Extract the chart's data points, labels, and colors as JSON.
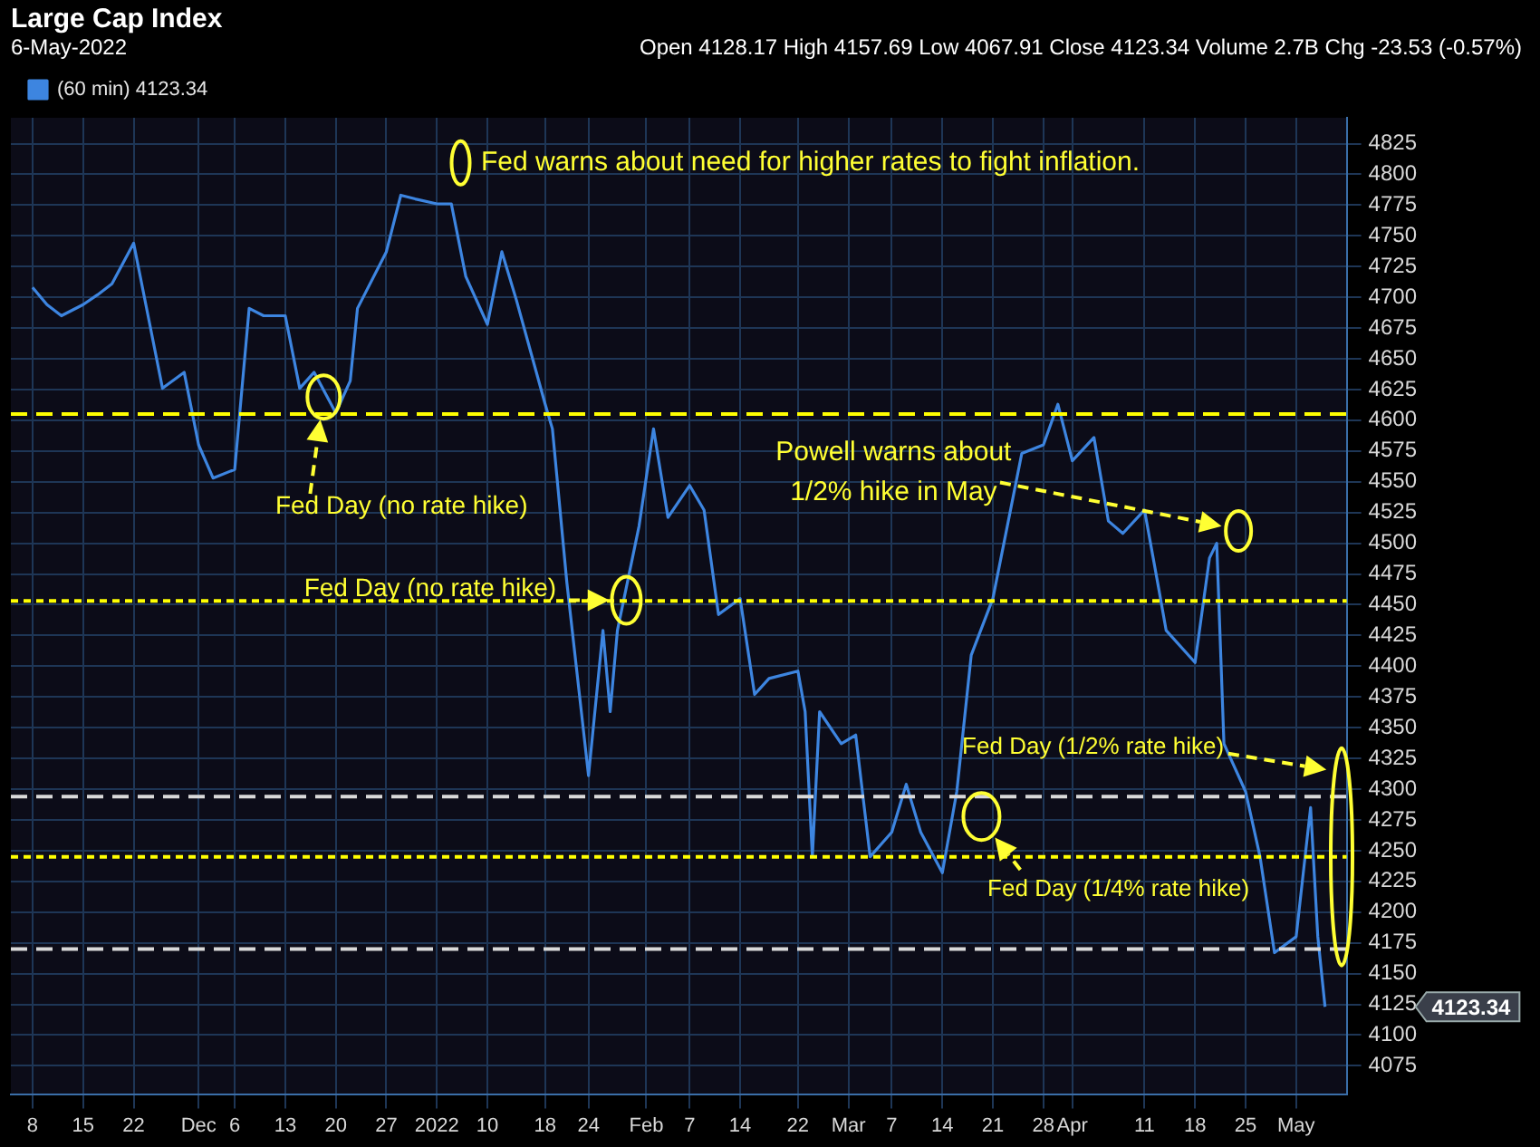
{
  "chart_data": {
    "type": "line",
    "title": "Large Cap Index",
    "subtitle": "6-May-2022",
    "x": [
      "2021-11-08",
      "2021-11-10",
      "2021-11-12",
      "2021-11-15",
      "2021-11-17",
      "2021-11-19",
      "2021-11-22",
      "2021-11-24",
      "2021-11-26",
      "2021-11-29",
      "2021-12-01",
      "2021-12-03",
      "2021-12-06",
      "2021-12-08",
      "2021-12-10",
      "2021-12-13",
      "2021-12-15",
      "2021-12-17",
      "2021-12-20",
      "2021-12-22",
      "2021-12-23",
      "2021-12-27",
      "2021-12-29",
      "2021-12-31",
      "2022-01-03",
      "2022-01-05",
      "2022-01-07",
      "2022-01-10",
      "2022-01-12",
      "2022-01-14",
      "2022-01-18",
      "2022-01-19",
      "2022-01-21",
      "2022-01-24",
      "2022-01-26",
      "2022-01-27",
      "2022-01-28",
      "2022-01-31",
      "2022-02-02",
      "2022-02-04",
      "2022-02-07",
      "2022-02-09",
      "2022-02-11",
      "2022-02-14",
      "2022-02-16",
      "2022-02-18",
      "2022-02-22",
      "2022-02-23",
      "2022-02-24",
      "2022-02-25",
      "2022-02-28",
      "2022-03-02",
      "2022-03-04",
      "2022-03-07",
      "2022-03-09",
      "2022-03-11",
      "2022-03-14",
      "2022-03-16",
      "2022-03-18",
      "2022-03-21",
      "2022-03-23",
      "2022-03-25",
      "2022-03-28",
      "2022-03-30",
      "2022-04-01",
      "2022-04-04",
      "2022-04-06",
      "2022-04-08",
      "2022-04-11",
      "2022-04-13",
      "2022-04-14",
      "2022-04-18",
      "2022-04-20",
      "2022-04-21",
      "2022-04-22",
      "2022-04-25",
      "2022-04-27",
      "2022-04-29",
      "2022-05-02",
      "2022-05-04",
      "2022-05-05",
      "2022-05-06"
    ],
    "series": [
      {
        "name": "(60 min) 4123.34",
        "color": "#3d85e0",
        "values": [
          4708,
          4694,
          4685,
          4694,
          4702,
          4711,
          4744,
          4685,
          4626,
          4639,
          4580,
          4553,
          4560,
          4691,
          4685,
          4685,
          4626,
          4639,
          4606,
          4632,
          4691,
          4737,
          4783,
          4780,
          4776,
          4776,
          4717,
          4678,
          4737,
          4698,
          4613,
          4593,
          4468,
          4311,
          4429,
          4363,
          4429,
          4514,
          4593,
          4521,
          4547,
          4527,
          4442,
          4455,
          4377,
          4390,
          4396,
          4363,
          4245,
          4363,
          4337,
          4344,
          4245,
          4265,
          4304,
          4265,
          4232,
          4298,
          4409,
          4455,
          4514,
          4573,
          4580,
          4613,
          4567,
          4586,
          4518,
          4508,
          4527,
          4462,
          4429,
          4403,
          4488,
          4500,
          4337,
          4298,
          4245,
          4167,
          4180,
          4285,
          4180,
          4123
        ]
      }
    ],
    "xlim": [
      "2021-11-05",
      "2022-05-09"
    ],
    "xticks": [
      {
        "value": "2021-11-08",
        "label": "8"
      },
      {
        "value": "2021-11-15",
        "label": "15"
      },
      {
        "value": "2021-11-22",
        "label": "22"
      },
      {
        "value": "2021-12-01",
        "label": "Dec"
      },
      {
        "value": "2021-12-06",
        "label": "6"
      },
      {
        "value": "2021-12-13",
        "label": "13"
      },
      {
        "value": "2021-12-20",
        "label": "20"
      },
      {
        "value": "2021-12-27",
        "label": "27"
      },
      {
        "value": "2022-01-03",
        "label": "2022"
      },
      {
        "value": "2022-01-10",
        "label": "10"
      },
      {
        "value": "2022-01-18",
        "label": "18"
      },
      {
        "value": "2022-01-24",
        "label": "24"
      },
      {
        "value": "2022-02-01",
        "label": "Feb"
      },
      {
        "value": "2022-02-07",
        "label": "7"
      },
      {
        "value": "2022-02-14",
        "label": "14"
      },
      {
        "value": "2022-02-22",
        "label": "22"
      },
      {
        "value": "2022-03-01",
        "label": "Mar"
      },
      {
        "value": "2022-03-07",
        "label": "7"
      },
      {
        "value": "2022-03-14",
        "label": "14"
      },
      {
        "value": "2022-03-21",
        "label": "21"
      },
      {
        "value": "2022-03-28",
        "label": "28"
      },
      {
        "value": "2022-04-01",
        "label": "Apr"
      },
      {
        "value": "2022-04-11",
        "label": "11"
      },
      {
        "value": "2022-04-18",
        "label": "18"
      },
      {
        "value": "2022-04-25",
        "label": "25"
      },
      {
        "value": "2022-05-02",
        "label": "May"
      }
    ],
    "ylim": [
      4052,
      4846
    ],
    "yticks": [
      4075,
      4100,
      4125,
      4150,
      4175,
      4200,
      4225,
      4250,
      4275,
      4300,
      4325,
      4350,
      4375,
      4400,
      4425,
      4450,
      4475,
      4500,
      4525,
      4550,
      4575,
      4600,
      4625,
      4650,
      4675,
      4700,
      4725,
      4750,
      4775,
      4800,
      4825
    ],
    "grid": true,
    "legend": "top left",
    "marker": "none",
    "line_style": "solid",
    "ref_lines": [
      {
        "axis": "y",
        "value": 4605,
        "color": "#ffff00",
        "line_style": "dashed"
      },
      {
        "axis": "y",
        "value": 4453,
        "color": "#ffff00",
        "line_style": "dotted"
      },
      {
        "axis": "y",
        "value": 4294,
        "color": "#d9d9d9",
        "line_style": "dashed"
      },
      {
        "axis": "y",
        "value": 4245,
        "color": "#ffff00",
        "line_style": "dotted"
      },
      {
        "axis": "y",
        "value": 4170,
        "color": "#d9d9d9",
        "line_style": "dashed"
      }
    ],
    "annotations": [
      "Open 4128.17 High 4157.69 Low 4067.91 Close 4123.34 Volume 2.7B Chg -23.53 (-0.57%)",
      "Fed warns about need for higher rates to fight inflation.",
      "Fed Day (no rate hike)",
      "Fed Day (no rate hike)",
      "Powell warns about 1/2% hike in May",
      "Fed Day (1/4% rate hike)",
      "Fed Day (1/2% rate hike)",
      "4123.34"
    ]
  }
}
